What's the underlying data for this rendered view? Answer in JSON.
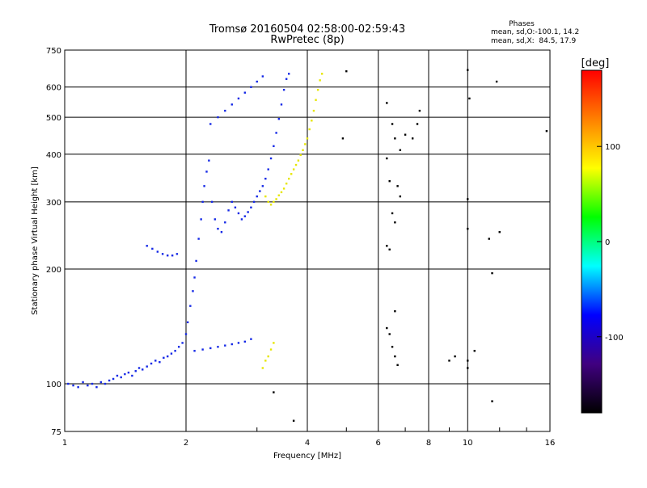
{
  "title": "Tromsø 20160504 02:58:00-02:59:43",
  "subtitle": "RwPretec (8p)",
  "phase_box": {
    "heading": "Phases",
    "line1": "mean, sd,O:-100.1, 14.2",
    "line2": "mean, sd,X:  84.5, 17.9"
  },
  "colorbar": {
    "unit_label": "[deg]",
    "ticks": [
      "100",
      "0",
      "-100"
    ],
    "tick_values": [
      100,
      0,
      -100
    ],
    "range": [
      -180,
      180
    ],
    "colors": [
      "#ff0000",
      "#ff8000",
      "#ffff00",
      "#00ff00",
      "#00ffff",
      "#0000ff",
      "#400080",
      "#000000"
    ]
  },
  "chart_data": {
    "type": "scatter",
    "title": "Tromsø 20160504 02:58:00-02:59:43",
    "subtitle": "RwPretec (8p)",
    "xlabel": "Frequency [MHz]",
    "ylabel": "Stationary phase Virtual Height [km]",
    "xscale": "log",
    "yscale": "log",
    "xlim": [
      1,
      16
    ],
    "ylim": [
      75,
      750
    ],
    "xticks": [
      1,
      2,
      4,
      6,
      8,
      10,
      16
    ],
    "xtick_labels": [
      "1",
      "2",
      "4",
      "6",
      "8",
      "10",
      "16"
    ],
    "yticks": [
      75,
      100,
      200,
      300,
      400,
      500,
      600,
      750
    ],
    "ytick_labels": [
      "75",
      "100",
      "200",
      "300",
      "400",
      "500",
      "600",
      "750"
    ],
    "grid": true,
    "color_encoding": "phase [deg]",
    "series": [
      {
        "mode": "O",
        "color": "#1428e6",
        "points": [
          [
            1.02,
            100
          ],
          [
            1.05,
            99
          ],
          [
            1.08,
            98
          ],
          [
            1.11,
            101
          ],
          [
            1.14,
            99
          ],
          [
            1.17,
            100
          ],
          [
            1.2,
            98
          ],
          [
            1.23,
            101
          ],
          [
            1.26,
            100
          ],
          [
            1.29,
            102
          ],
          [
            1.32,
            103
          ],
          [
            1.35,
            105
          ],
          [
            1.38,
            104
          ],
          [
            1.41,
            106
          ],
          [
            1.44,
            107
          ],
          [
            1.47,
            105
          ],
          [
            1.5,
            108
          ],
          [
            1.53,
            110
          ],
          [
            1.56,
            109
          ],
          [
            1.6,
            111
          ],
          [
            1.64,
            113
          ],
          [
            1.68,
            115
          ],
          [
            1.72,
            114
          ],
          [
            1.76,
            117
          ],
          [
            1.8,
            118
          ],
          [
            1.84,
            120
          ],
          [
            1.88,
            122
          ],
          [
            1.92,
            125
          ],
          [
            1.96,
            128
          ],
          [
            2.0,
            135
          ],
          [
            2.02,
            145
          ],
          [
            2.05,
            160
          ],
          [
            2.08,
            175
          ],
          [
            2.1,
            190
          ],
          [
            2.12,
            210
          ],
          [
            2.15,
            240
          ],
          [
            2.18,
            270
          ],
          [
            2.2,
            300
          ],
          [
            2.22,
            330
          ],
          [
            2.25,
            360
          ],
          [
            2.28,
            385
          ],
          [
            2.32,
            300
          ],
          [
            2.36,
            270
          ],
          [
            2.4,
            255
          ],
          [
            2.45,
            250
          ],
          [
            2.5,
            265
          ],
          [
            2.55,
            285
          ],
          [
            2.6,
            300
          ],
          [
            2.65,
            290
          ],
          [
            2.7,
            280
          ],
          [
            2.75,
            270
          ],
          [
            2.8,
            275
          ],
          [
            2.85,
            282
          ],
          [
            2.9,
            290
          ],
          [
            2.95,
            300
          ],
          [
            3.0,
            310
          ],
          [
            3.05,
            320
          ],
          [
            3.1,
            330
          ],
          [
            3.15,
            345
          ],
          [
            3.2,
            365
          ],
          [
            3.25,
            390
          ],
          [
            3.3,
            420
          ],
          [
            3.35,
            455
          ],
          [
            3.4,
            495
          ],
          [
            3.45,
            540
          ],
          [
            3.5,
            590
          ],
          [
            3.55,
            630
          ],
          [
            3.6,
            650
          ],
          [
            1.6,
            230
          ],
          [
            1.65,
            226
          ],
          [
            1.7,
            222
          ],
          [
            1.75,
            219
          ],
          [
            1.8,
            217
          ],
          [
            1.85,
            217
          ],
          [
            1.9,
            219
          ],
          [
            2.1,
            122
          ],
          [
            2.2,
            123
          ],
          [
            2.3,
            124
          ],
          [
            2.4,
            125
          ],
          [
            2.5,
            126
          ],
          [
            2.6,
            127
          ],
          [
            2.7,
            128
          ],
          [
            2.8,
            129
          ],
          [
            2.9,
            131
          ],
          [
            2.3,
            480
          ],
          [
            2.4,
            500
          ],
          [
            2.5,
            520
          ],
          [
            2.6,
            540
          ],
          [
            2.7,
            560
          ],
          [
            2.8,
            580
          ],
          [
            2.9,
            600
          ],
          [
            3.0,
            620
          ],
          [
            3.1,
            640
          ]
        ]
      },
      {
        "mode": "X",
        "color": "#e6e600",
        "points": [
          [
            3.1,
            110
          ],
          [
            3.15,
            115
          ],
          [
            3.2,
            118
          ],
          [
            3.25,
            123
          ],
          [
            3.3,
            128
          ],
          [
            3.15,
            310
          ],
          [
            3.2,
            300
          ],
          [
            3.25,
            295
          ],
          [
            3.3,
            300
          ],
          [
            3.35,
            305
          ],
          [
            3.4,
            312
          ],
          [
            3.45,
            318
          ],
          [
            3.5,
            325
          ],
          [
            3.55,
            335
          ],
          [
            3.6,
            345
          ],
          [
            3.65,
            355
          ],
          [
            3.7,
            365
          ],
          [
            3.75,
            375
          ],
          [
            3.8,
            385
          ],
          [
            3.85,
            398
          ],
          [
            3.9,
            410
          ],
          [
            3.95,
            425
          ],
          [
            4.0,
            440
          ],
          [
            4.05,
            465
          ],
          [
            4.1,
            490
          ],
          [
            4.15,
            520
          ],
          [
            4.2,
            555
          ],
          [
            4.25,
            590
          ],
          [
            4.3,
            625
          ],
          [
            4.35,
            650
          ]
        ]
      },
      {
        "mode": "noise",
        "color": "#000000",
        "points": [
          [
            6.3,
            545
          ],
          [
            6.5,
            480
          ],
          [
            6.6,
            440
          ],
          [
            6.8,
            410
          ],
          [
            7.0,
            450
          ],
          [
            7.3,
            440
          ],
          [
            7.5,
            480
          ],
          [
            7.6,
            520
          ],
          [
            6.3,
            390
          ],
          [
            6.4,
            340
          ],
          [
            6.5,
            280
          ],
          [
            6.6,
            265
          ],
          [
            6.7,
            330
          ],
          [
            6.8,
            310
          ],
          [
            6.3,
            230
          ],
          [
            6.4,
            225
          ],
          [
            6.6,
            155
          ],
          [
            6.3,
            140
          ],
          [
            6.4,
            135
          ],
          [
            6.5,
            125
          ],
          [
            6.6,
            118
          ],
          [
            6.7,
            112
          ],
          [
            9.0,
            115
          ],
          [
            9.3,
            118
          ],
          [
            10.0,
            305
          ],
          [
            10.0,
            255
          ],
          [
            10.0,
            115
          ],
          [
            10.0,
            110
          ],
          [
            10.4,
            122
          ],
          [
            11.3,
            240
          ],
          [
            11.5,
            195
          ],
          [
            11.5,
            90
          ],
          [
            11.8,
            620
          ],
          [
            12.0,
            250
          ],
          [
            15.7,
            460
          ],
          [
            10.1,
            560
          ],
          [
            10.0,
            665
          ],
          [
            5.0,
            660
          ],
          [
            4.9,
            440
          ],
          [
            3.7,
            80
          ],
          [
            3.3,
            95
          ]
        ]
      }
    ]
  }
}
